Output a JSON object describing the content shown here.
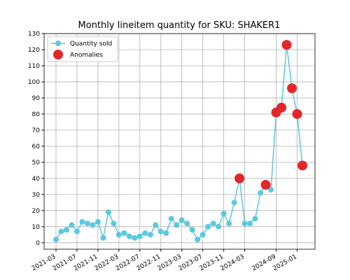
{
  "chart_data": {
    "type": "line",
    "title": "Monthly lineitem quantity for SKU: SHAKER1",
    "x": [
      "2021-03",
      "2021-04",
      "2021-05",
      "2021-06",
      "2021-07",
      "2021-08",
      "2021-09",
      "2021-10",
      "2021-11",
      "2021-12",
      "2022-01",
      "2022-02",
      "2022-03",
      "2022-04",
      "2022-05",
      "2022-06",
      "2022-07",
      "2022-08",
      "2022-09",
      "2022-10",
      "2022-11",
      "2022-12",
      "2023-01",
      "2023-02",
      "2023-03",
      "2023-04",
      "2023-05",
      "2023-06",
      "2023-07",
      "2023-08",
      "2023-09",
      "2023-10",
      "2023-11",
      "2023-12",
      "2024-01",
      "2024-02",
      "2024-03",
      "2024-04",
      "2024-05",
      "2024-06",
      "2024-07",
      "2024-08",
      "2024-09",
      "2024-10",
      "2024-11",
      "2024-12",
      "2025-01",
      "2025-02"
    ],
    "series": [
      {
        "name": "Quantity sold",
        "color": "#5bc8e0",
        "values": [
          2,
          7,
          8,
          11,
          7,
          13,
          12,
          11,
          13,
          3,
          19,
          12,
          5,
          6,
          4,
          3,
          4,
          6,
          5,
          11,
          7,
          6,
          15,
          11,
          14,
          12,
          8,
          2,
          5,
          10,
          12,
          10,
          18,
          12,
          25,
          40,
          12,
          12,
          15,
          31,
          36,
          33,
          81,
          84,
          123,
          96,
          80,
          48
        ]
      },
      {
        "name": "Anomalies",
        "color": "#e3262a",
        "type": "scatter",
        "x": [
          "2024-02",
          "2024-07",
          "2024-09",
          "2024-10",
          "2024-11",
          "2024-12",
          "2025-01",
          "2025-02"
        ],
        "values": [
          40,
          36,
          81,
          84,
          123,
          96,
          80,
          48
        ]
      }
    ],
    "xticks": [
      "2021-03",
      "2021-07",
      "2021-11",
      "2022-03",
      "2022-07",
      "2022-11",
      "2023-03",
      "2023-07",
      "2023-11",
      "2024-03",
      "2024-09",
      "2025-01"
    ],
    "ylim": [
      -4,
      130
    ],
    "yticks": [
      0,
      10,
      20,
      30,
      40,
      50,
      60,
      70,
      80,
      90,
      100,
      110,
      120,
      130
    ],
    "grid": true,
    "legend": "upper left"
  }
}
